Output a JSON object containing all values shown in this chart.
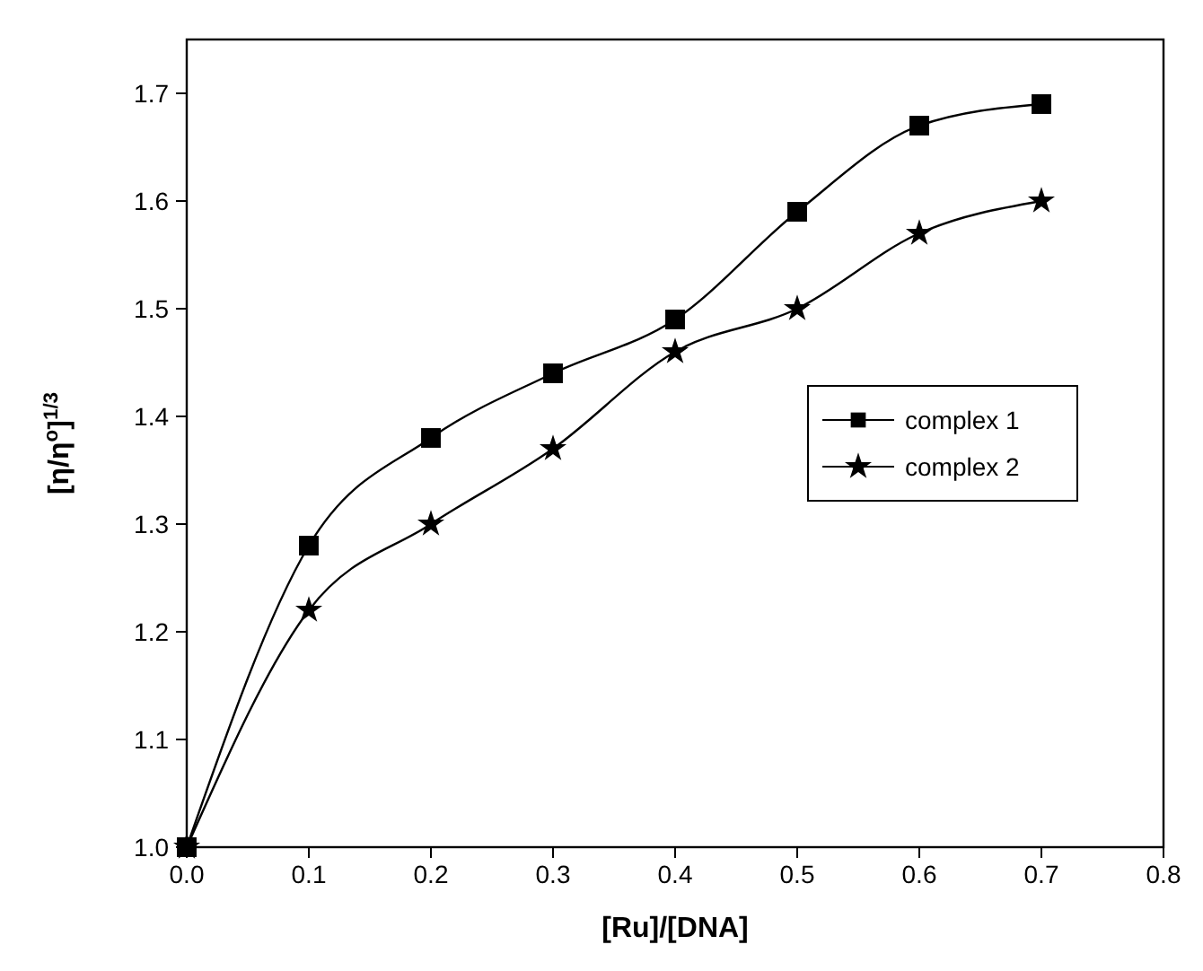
{
  "chart_data": {
    "type": "line",
    "xlabel": "[Ru]/[DNA]",
    "ylabel": "[η/η$^{o}$]$^{1/3}$",
    "x": [
      0,
      0.1,
      0.2,
      0.3,
      0.4,
      0.5,
      0.6,
      0.7
    ],
    "series": [
      {
        "name": "complex 1",
        "color": "#000000",
        "marker": "square",
        "values": [
          1.0,
          1.28,
          1.38,
          1.44,
          1.49,
          1.59,
          1.67,
          1.69
        ]
      },
      {
        "name": "complex 2",
        "color": "#000000",
        "marker": "star",
        "values": [
          1.0,
          1.22,
          1.3,
          1.37,
          1.46,
          1.5,
          1.57,
          1.6
        ]
      }
    ],
    "xlim": [
      0,
      0.8
    ],
    "xticks": [
      {
        "value": 0,
        "label": "0.0"
      },
      {
        "value": 0.1,
        "label": "0.1"
      },
      {
        "value": 0.2,
        "label": "0.2"
      },
      {
        "value": 0.3,
        "label": "0.3"
      },
      {
        "value": 0.4,
        "label": "0.4"
      },
      {
        "value": 0.5,
        "label": "0.5"
      },
      {
        "value": 0.6,
        "label": "0.6"
      },
      {
        "value": 0.7,
        "label": "0.7"
      },
      {
        "value": 0.8,
        "label": "0.8"
      }
    ],
    "ylim": [
      1.0,
      1.75
    ],
    "yticks": [
      {
        "value": 1.0,
        "label": "1.0"
      },
      {
        "value": 1.1,
        "label": "1.1"
      },
      {
        "value": 1.2,
        "label": "1.2"
      },
      {
        "value": 1.3,
        "label": "1.3"
      },
      {
        "value": 1.4,
        "label": "1.4"
      },
      {
        "value": 1.5,
        "label": "1.5"
      },
      {
        "value": 1.6,
        "label": "1.6"
      },
      {
        "value": 1.7,
        "label": "1.7"
      }
    ],
    "legend": "right",
    "grid": false,
    "line_style": "solid"
  }
}
